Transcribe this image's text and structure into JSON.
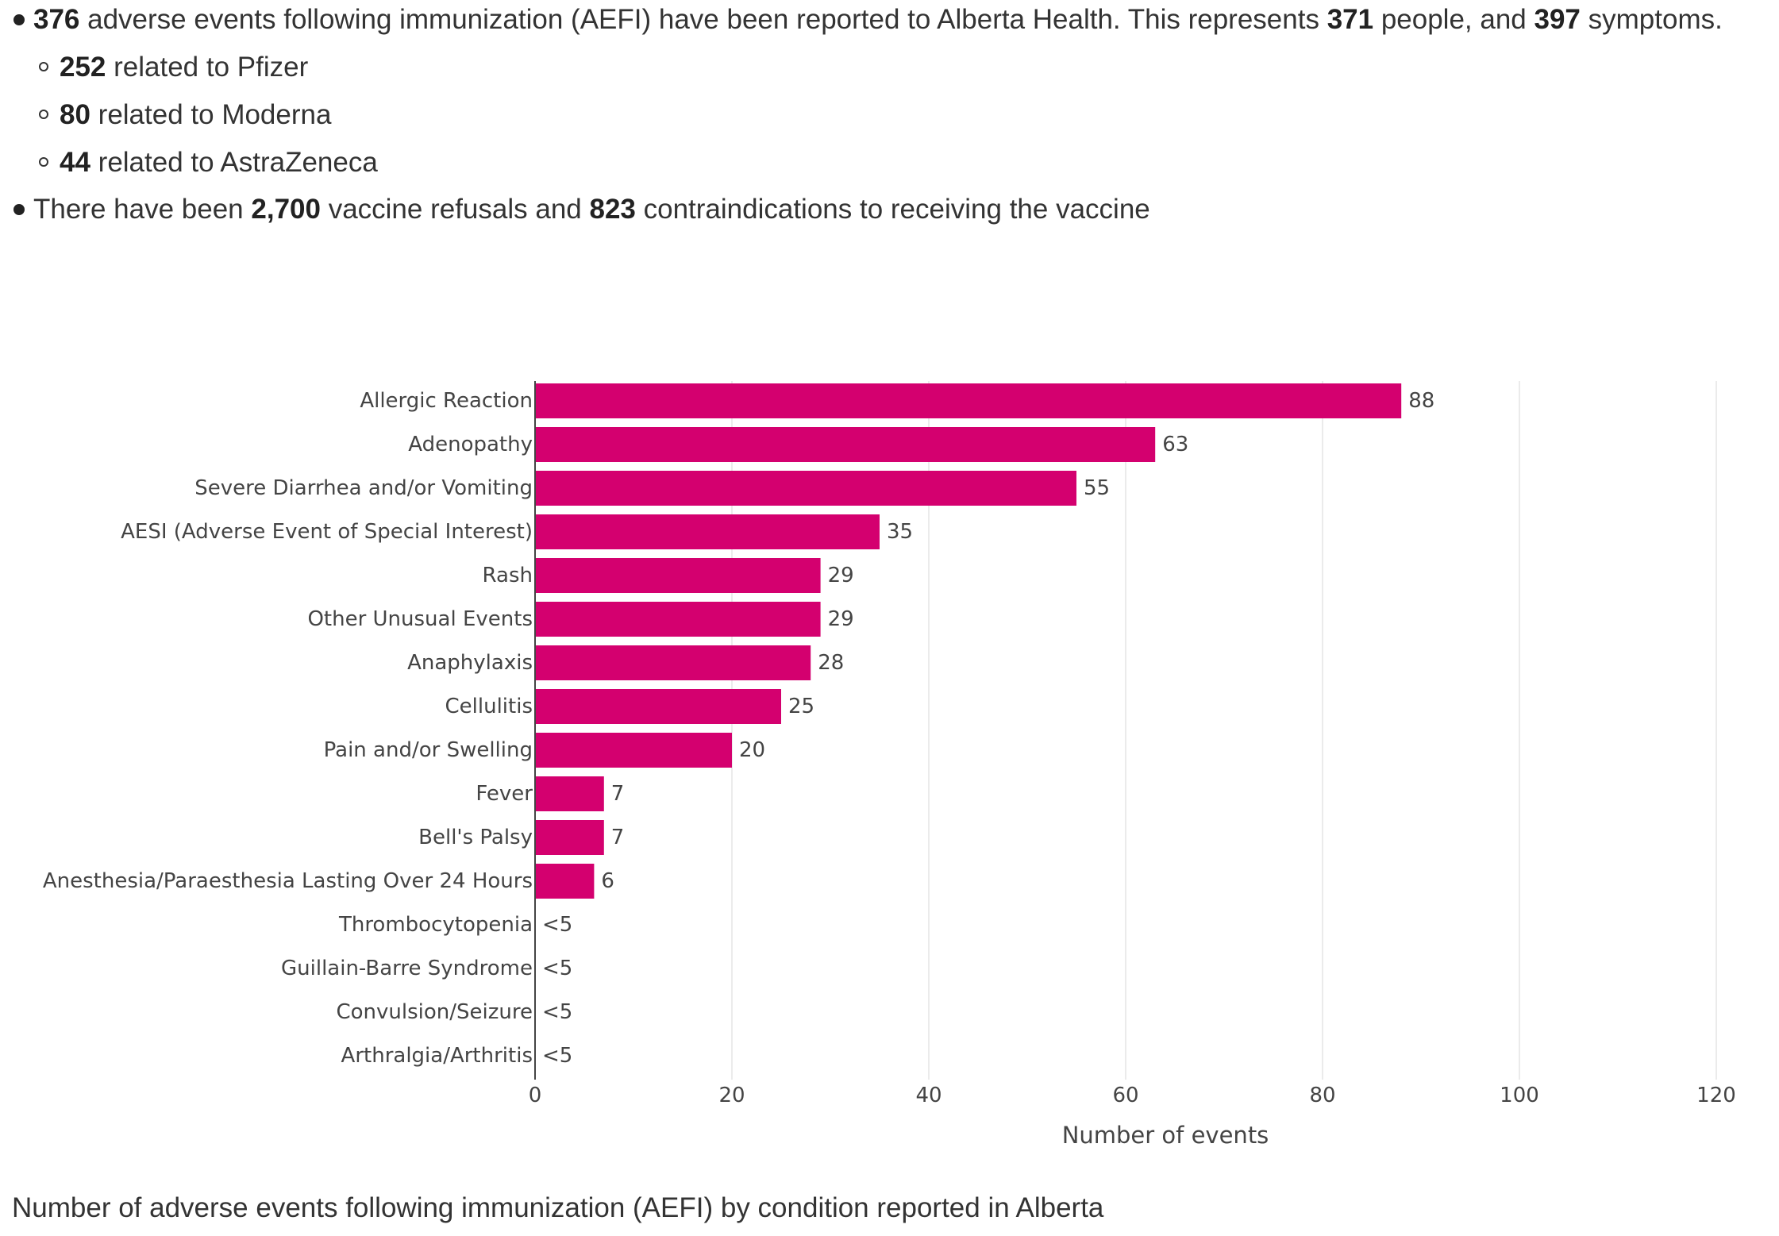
{
  "bullets": {
    "aefi": {
      "count": "376",
      "text1": " adverse events following immunization (AEFI) have been reported to Alberta Health. This represents ",
      "people": "371",
      "text2": " people, and ",
      "symptoms": "397",
      "text3": " symptoms."
    },
    "sub": [
      {
        "count": "252",
        "text": " related to Pfizer"
      },
      {
        "count": "80",
        "text": " related to Moderna"
      },
      {
        "count": "44",
        "text": " related to AstraZeneca"
      }
    ],
    "refusals": {
      "text1": "There have been ",
      "refusals": "2,700",
      "text2": " vaccine refusals and ",
      "contra": "823",
      "text3": " contraindications to receiving the vaccine"
    }
  },
  "caption": "Number of adverse events following immunization (AEFI) by condition reported in Alberta",
  "colors": {
    "bar": "#d4006f",
    "grid": "#ebebeb",
    "axis": "#444444"
  },
  "chart_data": {
    "type": "bar",
    "orientation": "horizontal",
    "categories": [
      "Allergic Reaction",
      "Adenopathy",
      "Severe Diarrhea and/or Vomiting",
      "AESI (Adverse Event of Special Interest)",
      "Rash",
      "Other Unusual Events",
      "Anaphylaxis",
      "Cellulitis",
      "Pain and/or Swelling",
      "Fever",
      "Bell's Palsy",
      "Anesthesia/Paraesthesia Lasting Over 24 Hours",
      "Thrombocytopenia",
      "Guillain-Barre Syndrome",
      "Convulsion/Seizure",
      "Arthralgia/Arthritis"
    ],
    "values": [
      88,
      63,
      55,
      35,
      29,
      29,
      28,
      25,
      20,
      7,
      7,
      6,
      0,
      0,
      0,
      0
    ],
    "labels": [
      "88",
      "63",
      "55",
      "35",
      "29",
      "29",
      "28",
      "25",
      "20",
      "7",
      "7",
      "6",
      "<5",
      "<5",
      "<5",
      "<5"
    ],
    "xlabel": "Number of events",
    "ylabel": "",
    "xlim": [
      0,
      120
    ],
    "xticks": [
      0,
      20,
      40,
      60,
      80,
      100,
      120
    ],
    "grid": true
  }
}
